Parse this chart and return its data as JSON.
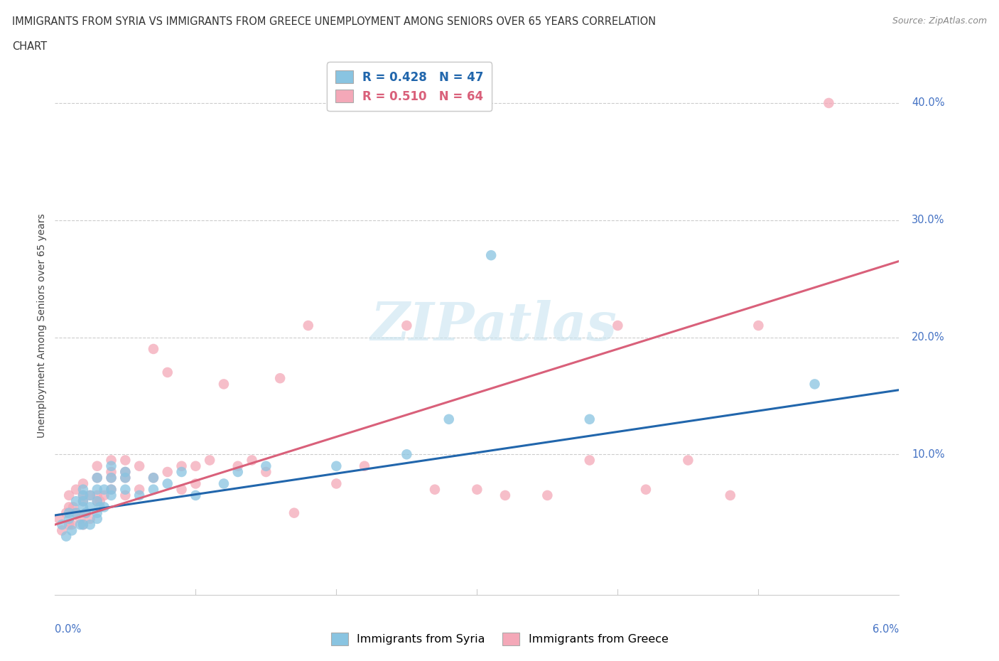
{
  "title_line1": "IMMIGRANTS FROM SYRIA VS IMMIGRANTS FROM GREECE UNEMPLOYMENT AMONG SENIORS OVER 65 YEARS CORRELATION",
  "title_line2": "CHART",
  "source": "Source: ZipAtlas.com",
  "ylabel": "Unemployment Among Seniors over 65 years",
  "xlim": [
    0.0,
    0.06
  ],
  "ylim": [
    -0.02,
    0.44
  ],
  "syria_color": "#89c4e1",
  "greece_color": "#f4a8b8",
  "syria_line_color": "#2166ac",
  "greece_line_color": "#d9607a",
  "legend_label_syria": "R = 0.428   N = 47",
  "legend_label_greece": "R = 0.510   N = 64",
  "legend_x_label_syria": "Immigrants from Syria",
  "legend_x_label_greece": "Immigrants from Greece",
  "background_color": "#ffffff",
  "watermark": "ZIPatlas",
  "syria_x": [
    0.0005,
    0.0008,
    0.001,
    0.001,
    0.0012,
    0.0015,
    0.0015,
    0.0018,
    0.002,
    0.002,
    0.002,
    0.002,
    0.002,
    0.0022,
    0.0025,
    0.0025,
    0.0025,
    0.003,
    0.003,
    0.003,
    0.003,
    0.003,
    0.0032,
    0.0035,
    0.0035,
    0.004,
    0.004,
    0.004,
    0.004,
    0.005,
    0.005,
    0.005,
    0.006,
    0.007,
    0.007,
    0.008,
    0.009,
    0.01,
    0.012,
    0.013,
    0.015,
    0.02,
    0.025,
    0.028,
    0.031,
    0.038,
    0.054
  ],
  "syria_y": [
    0.04,
    0.03,
    0.045,
    0.05,
    0.035,
    0.05,
    0.06,
    0.04,
    0.04,
    0.055,
    0.06,
    0.065,
    0.07,
    0.05,
    0.04,
    0.055,
    0.065,
    0.045,
    0.05,
    0.06,
    0.07,
    0.08,
    0.055,
    0.055,
    0.07,
    0.065,
    0.07,
    0.08,
    0.09,
    0.07,
    0.08,
    0.085,
    0.065,
    0.07,
    0.08,
    0.075,
    0.085,
    0.065,
    0.075,
    0.085,
    0.09,
    0.09,
    0.1,
    0.13,
    0.27,
    0.13,
    0.16
  ],
  "greece_x": [
    0.0003,
    0.0005,
    0.0008,
    0.001,
    0.001,
    0.001,
    0.0012,
    0.0013,
    0.0015,
    0.0015,
    0.0018,
    0.002,
    0.002,
    0.002,
    0.002,
    0.0022,
    0.0025,
    0.0025,
    0.003,
    0.003,
    0.003,
    0.003,
    0.0032,
    0.0035,
    0.004,
    0.004,
    0.004,
    0.004,
    0.005,
    0.005,
    0.005,
    0.005,
    0.006,
    0.006,
    0.007,
    0.007,
    0.008,
    0.008,
    0.009,
    0.009,
    0.01,
    0.01,
    0.011,
    0.012,
    0.013,
    0.014,
    0.015,
    0.016,
    0.017,
    0.018,
    0.02,
    0.022,
    0.025,
    0.027,
    0.03,
    0.032,
    0.035,
    0.038,
    0.04,
    0.042,
    0.045,
    0.048,
    0.05,
    0.055
  ],
  "greece_y": [
    0.045,
    0.035,
    0.05,
    0.04,
    0.055,
    0.065,
    0.04,
    0.055,
    0.05,
    0.07,
    0.045,
    0.04,
    0.06,
    0.065,
    0.075,
    0.05,
    0.045,
    0.065,
    0.06,
    0.065,
    0.08,
    0.09,
    0.06,
    0.065,
    0.07,
    0.08,
    0.085,
    0.095,
    0.065,
    0.08,
    0.085,
    0.095,
    0.07,
    0.09,
    0.08,
    0.19,
    0.085,
    0.17,
    0.07,
    0.09,
    0.075,
    0.09,
    0.095,
    0.16,
    0.09,
    0.095,
    0.085,
    0.165,
    0.05,
    0.21,
    0.075,
    0.09,
    0.21,
    0.07,
    0.07,
    0.065,
    0.065,
    0.095,
    0.21,
    0.07,
    0.095,
    0.065,
    0.21,
    0.4
  ],
  "syria_line_x": [
    0.0,
    0.06
  ],
  "syria_line_y": [
    0.048,
    0.155
  ],
  "greece_line_x": [
    0.0,
    0.06
  ],
  "greece_line_y": [
    0.04,
    0.265
  ]
}
